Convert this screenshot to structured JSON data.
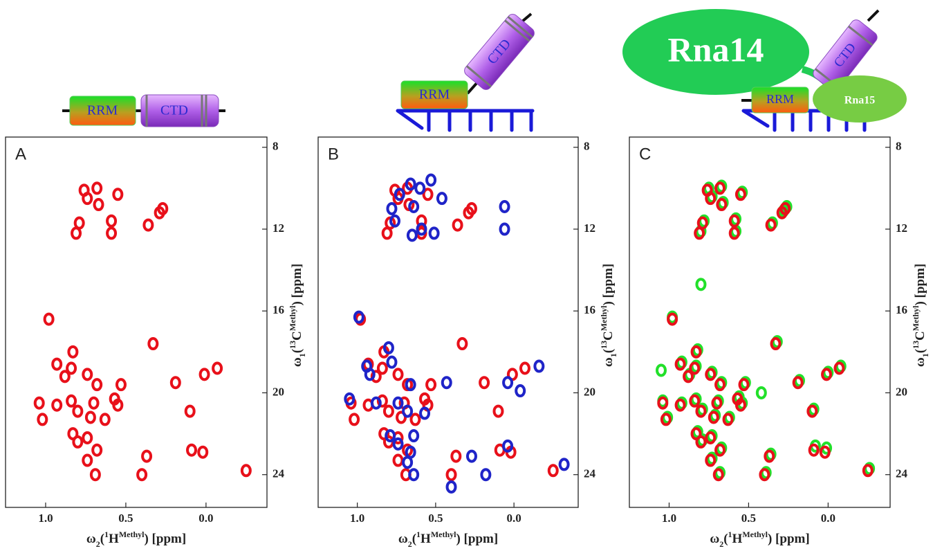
{
  "chart_data": [
    {
      "type": "scatter",
      "panel": "A",
      "schematic": [
        "RRM",
        "CTD"
      ],
      "xlabel_parts": [
        "ω",
        "2",
        "(",
        "1",
        "H",
        "Methyl",
        ") [ppm]"
      ],
      "ylabel_parts": [
        "ω",
        "1",
        "(",
        "13",
        "C",
        "Methyl",
        ") [ppm]"
      ],
      "xlim": [
        1.25,
        -0.38
      ],
      "ylim": [
        25.6,
        7.5
      ],
      "xticks": [
        {
          "value": 1,
          "label": "1.0"
        },
        {
          "value": 0.5,
          "label": "0.5"
        },
        {
          "value": 0,
          "label": "0.0"
        }
      ],
      "yticks": [
        8,
        12,
        16,
        20,
        24
      ],
      "series": [
        {
          "color": "#e8101a",
          "x": [
            0.76,
            0.74,
            0.68,
            0.67,
            0.55,
            0.27,
            0.29,
            0.36,
            0.79,
            0.81,
            0.59,
            0.59,
            0.98,
            0.33,
            0.83,
            0.84,
            0.93,
            0.88,
            0.74,
            0.68,
            0.53,
            0.19,
            0.01,
            -0.07,
            1.04,
            0.93,
            0.84,
            0.8,
            0.7,
            0.57,
            1.02,
            0.72,
            0.63,
            0.55,
            0.1,
            0.83,
            0.8,
            0.74,
            0.68,
            0.74,
            0.69,
            0.37,
            0.4,
            0.09,
            0.02,
            -0.25
          ],
          "values": [
            10.1,
            10.5,
            10.0,
            10.8,
            10.3,
            11.0,
            11.2,
            11.8,
            11.7,
            12.2,
            11.6,
            12.2,
            16.4,
            17.6,
            18.0,
            18.8,
            18.6,
            19.2,
            19.1,
            19.6,
            19.6,
            19.5,
            19.1,
            18.8,
            20.5,
            20.6,
            20.4,
            20.9,
            20.5,
            20.3,
            21.3,
            21.2,
            21.3,
            20.6,
            20.9,
            22.0,
            22.4,
            22.2,
            22.8,
            23.3,
            24.0,
            23.1,
            24.0,
            22.8,
            22.9,
            23.8
          ]
        }
      ]
    },
    {
      "type": "scatter",
      "panel": "B",
      "schematic": [
        "RRM",
        "CTD"
      ],
      "xlabel_parts": [
        "ω",
        "2",
        "(",
        "1",
        "H",
        "Methyl",
        ") [ppm]"
      ],
      "ylabel_parts": [
        "ω",
        "1",
        "(",
        "13",
        "C",
        "Methyl",
        ") [ppm]"
      ],
      "xlim": [
        1.25,
        -0.41
      ],
      "ylim": [
        25.6,
        7.5
      ],
      "xticks": [
        {
          "value": 1,
          "label": "1.0"
        },
        {
          "value": 0.5,
          "label": "0.5"
        },
        {
          "value": 0,
          "label": "0.0"
        }
      ],
      "yticks": [
        8,
        12,
        16,
        20,
        24
      ],
      "series": [
        {
          "color": "#e8101a",
          "x": [
            0.76,
            0.74,
            0.68,
            0.67,
            0.55,
            0.27,
            0.29,
            0.36,
            0.79,
            0.81,
            0.59,
            0.59,
            0.98,
            0.33,
            0.83,
            0.84,
            0.93,
            0.88,
            0.74,
            0.68,
            0.53,
            0.19,
            0.01,
            -0.07,
            1.04,
            0.93,
            0.84,
            0.8,
            0.7,
            0.57,
            1.02,
            0.72,
            0.63,
            0.55,
            0.1,
            0.83,
            0.8,
            0.74,
            0.68,
            0.74,
            0.69,
            0.37,
            0.4,
            0.09,
            0.02,
            -0.25
          ],
          "values": [
            10.1,
            10.5,
            10.0,
            10.8,
            10.3,
            11.0,
            11.2,
            11.8,
            11.7,
            12.2,
            11.6,
            12.2,
            16.4,
            17.6,
            18.0,
            18.8,
            18.6,
            19.2,
            19.1,
            19.6,
            19.6,
            19.5,
            19.1,
            18.8,
            20.5,
            20.6,
            20.4,
            20.9,
            20.5,
            20.3,
            21.3,
            21.2,
            21.3,
            20.6,
            20.9,
            22.0,
            22.4,
            22.2,
            22.8,
            23.3,
            24.0,
            23.1,
            24.0,
            22.8,
            22.9,
            23.8
          ]
        },
        {
          "color": "#1f24c8",
          "x": [
            0.73,
            0.66,
            0.6,
            0.53,
            0.46,
            0.64,
            0.78,
            0.76,
            0.65,
            0.59,
            0.51,
            0.06,
            0.06,
            0.99,
            0.8,
            0.78,
            0.94,
            0.92,
            0.66,
            0.43,
            0.04,
            -0.04,
            -0.16,
            1.05,
            0.88,
            0.74,
            0.68,
            0.57,
            0.79,
            0.74,
            0.64,
            0.66,
            0.68,
            0.64,
            0.4,
            0.27,
            0.18,
            0.04,
            -0.32
          ],
          "values": [
            10.3,
            9.8,
            10.0,
            9.6,
            10.5,
            10.9,
            11.0,
            11.6,
            12.3,
            12.0,
            12.2,
            10.9,
            12.0,
            16.3,
            17.8,
            18.5,
            18.7,
            19.1,
            19.6,
            19.5,
            19.5,
            19.9,
            18.7,
            20.3,
            20.5,
            20.5,
            20.9,
            21.0,
            22.1,
            22.5,
            22.1,
            22.9,
            23.4,
            24.0,
            24.6,
            23.1,
            24.0,
            22.6,
            23.5
          ]
        }
      ]
    },
    {
      "type": "scatter",
      "panel": "C",
      "schematic": [
        "Rna14",
        "RRM",
        "CTD",
        "Rna15"
      ],
      "xlabel_parts": [
        "ω",
        "2",
        "(",
        "1",
        "H",
        "Methyl",
        ") [ppm]"
      ],
      "ylabel_parts": [
        "ω",
        "1",
        "(",
        "13",
        "C",
        "Methyl",
        ") [ppm]"
      ],
      "xlim": [
        1.25,
        -0.39
      ],
      "ylim": [
        25.6,
        7.5
      ],
      "xticks": [
        {
          "value": 1,
          "label": "1.0"
        },
        {
          "value": 0.5,
          "label": "0.5"
        },
        {
          "value": 0,
          "label": "0.0"
        }
      ],
      "yticks": [
        8,
        12,
        16,
        20,
        24
      ],
      "series": [
        {
          "color": "#22e02a",
          "x": [
            0.75,
            0.73,
            0.67,
            0.66,
            0.54,
            0.26,
            0.28,
            0.35,
            0.78,
            0.8,
            0.58,
            0.58,
            0.98,
            0.32,
            0.82,
            0.83,
            0.92,
            0.87,
            0.73,
            0.67,
            0.52,
            0.18,
            0.0,
            -0.08,
            1.04,
            0.92,
            0.83,
            0.79,
            0.69,
            0.56,
            1.01,
            0.71,
            0.62,
            0.54,
            0.09,
            0.82,
            0.79,
            0.73,
            0.67,
            0.73,
            0.68,
            0.36,
            0.39,
            0.08,
            0.01,
            -0.26,
            0.8,
            1.05,
            0.42
          ],
          "values": [
            10.0,
            10.4,
            9.9,
            10.7,
            10.2,
            10.9,
            11.1,
            11.7,
            11.6,
            12.1,
            11.5,
            12.1,
            16.3,
            17.5,
            17.9,
            18.7,
            18.5,
            19.1,
            19.0,
            19.5,
            19.5,
            19.4,
            19.0,
            18.7,
            20.4,
            20.5,
            20.3,
            20.8,
            20.4,
            20.2,
            21.2,
            21.1,
            21.2,
            20.5,
            20.8,
            21.9,
            22.3,
            22.1,
            22.7,
            23.2,
            23.9,
            23.0,
            23.9,
            22.6,
            22.7,
            23.7,
            14.7,
            18.9,
            20.0
          ]
        },
        {
          "color": "#e8101a",
          "x": [
            0.76,
            0.74,
            0.68,
            0.67,
            0.55,
            0.27,
            0.29,
            0.36,
            0.79,
            0.81,
            0.59,
            0.59,
            0.98,
            0.33,
            0.83,
            0.84,
            0.93,
            0.88,
            0.74,
            0.68,
            0.53,
            0.19,
            0.01,
            -0.07,
            1.04,
            0.93,
            0.84,
            0.8,
            0.7,
            0.57,
            1.02,
            0.72,
            0.63,
            0.55,
            0.1,
            0.83,
            0.8,
            0.74,
            0.68,
            0.74,
            0.69,
            0.37,
            0.4,
            0.09,
            0.02,
            -0.25
          ],
          "values": [
            10.1,
            10.5,
            10.0,
            10.8,
            10.3,
            11.0,
            11.2,
            11.8,
            11.7,
            12.2,
            11.6,
            12.2,
            16.4,
            17.6,
            18.0,
            18.8,
            18.6,
            19.2,
            19.1,
            19.6,
            19.6,
            19.5,
            19.1,
            18.8,
            20.5,
            20.6,
            20.4,
            20.9,
            20.5,
            20.3,
            21.3,
            21.2,
            21.3,
            20.6,
            20.9,
            22.0,
            22.4,
            22.2,
            22.8,
            23.3,
            24.0,
            23.1,
            24.0,
            22.8,
            22.9,
            23.8
          ]
        }
      ]
    }
  ]
}
